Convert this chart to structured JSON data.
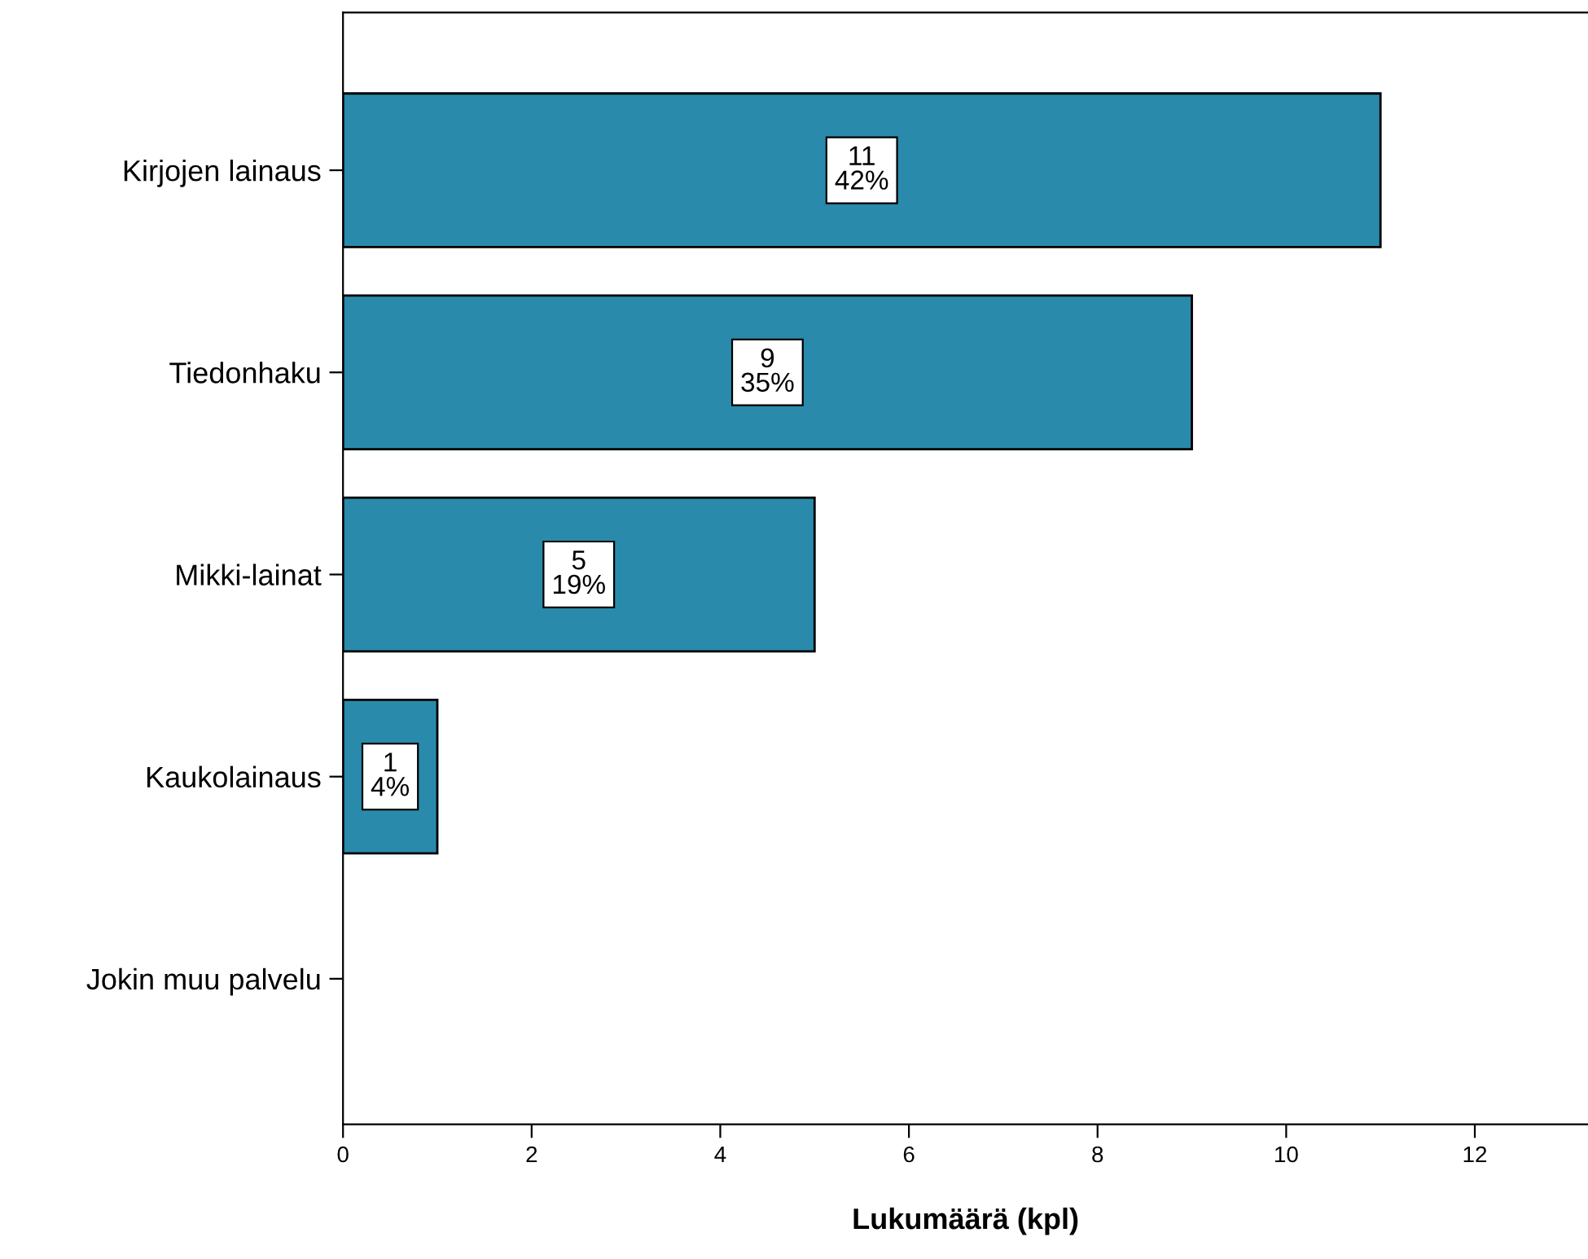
{
  "chart_data": {
    "type": "bar",
    "orientation": "horizontal",
    "xlabel": "Lukumäärä (kpl)",
    "categories": [
      "Kirjojen lainaus",
      "Tiedonhaku",
      "Mikki-lainat",
      "Kaukolainaus",
      "Jokin muu palvelu"
    ],
    "values": [
      11,
      9,
      5,
      1,
      null
    ],
    "value_labels": [
      "11\n42%",
      "9\n35%",
      "5\n19%",
      "1\n4%",
      null
    ],
    "color": "#2a8aab",
    "xlim": [
      0,
      13.2
    ],
    "xticks": [
      0,
      2,
      4,
      6,
      8,
      10,
      12
    ],
    "grid": false,
    "legend": false
  }
}
